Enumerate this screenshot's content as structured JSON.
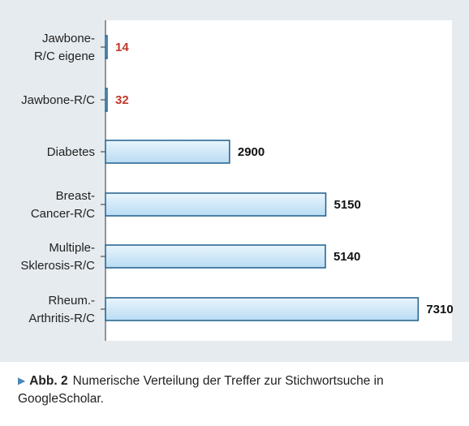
{
  "chart_data": {
    "type": "bar",
    "orientation": "horizontal",
    "categories": [
      [
        "Jawbone-",
        "R/C eigene"
      ],
      [
        "Jawbone-R/C"
      ],
      [
        "Diabetes"
      ],
      [
        "Breast-",
        "Cancer-R/C"
      ],
      [
        "Multiple-",
        "Sklerosis-R/C"
      ],
      [
        "Rheum.-",
        "Arthritis-R/C"
      ]
    ],
    "values": [
      14,
      32,
      2900,
      5150,
      5140,
      7310
    ],
    "value_labels": [
      "14",
      "32",
      "2900",
      "5150",
      "5140",
      "7310"
    ],
    "value_label_colors": [
      "#c0392b",
      "#c0392b",
      "#111111",
      "#111111",
      "#111111",
      "#111111"
    ],
    "xlim": [
      0,
      8100
    ],
    "grid": false,
    "legend": "none",
    "bar_fill_top": "#e9f5fd",
    "bar_fill_bottom": "#b9dcf3",
    "bar_stroke": "#1f5f8b"
  },
  "caption": {
    "marker": "▶",
    "figure_label": "Abb. 2",
    "text": "Numerische Verteilung der Treffer zur Stichwortsuche in GoogleScholar."
  },
  "colors": {
    "panel_background": "#e6ebef",
    "plot_background": "#ffffff",
    "accent": "#4a86b8"
  }
}
